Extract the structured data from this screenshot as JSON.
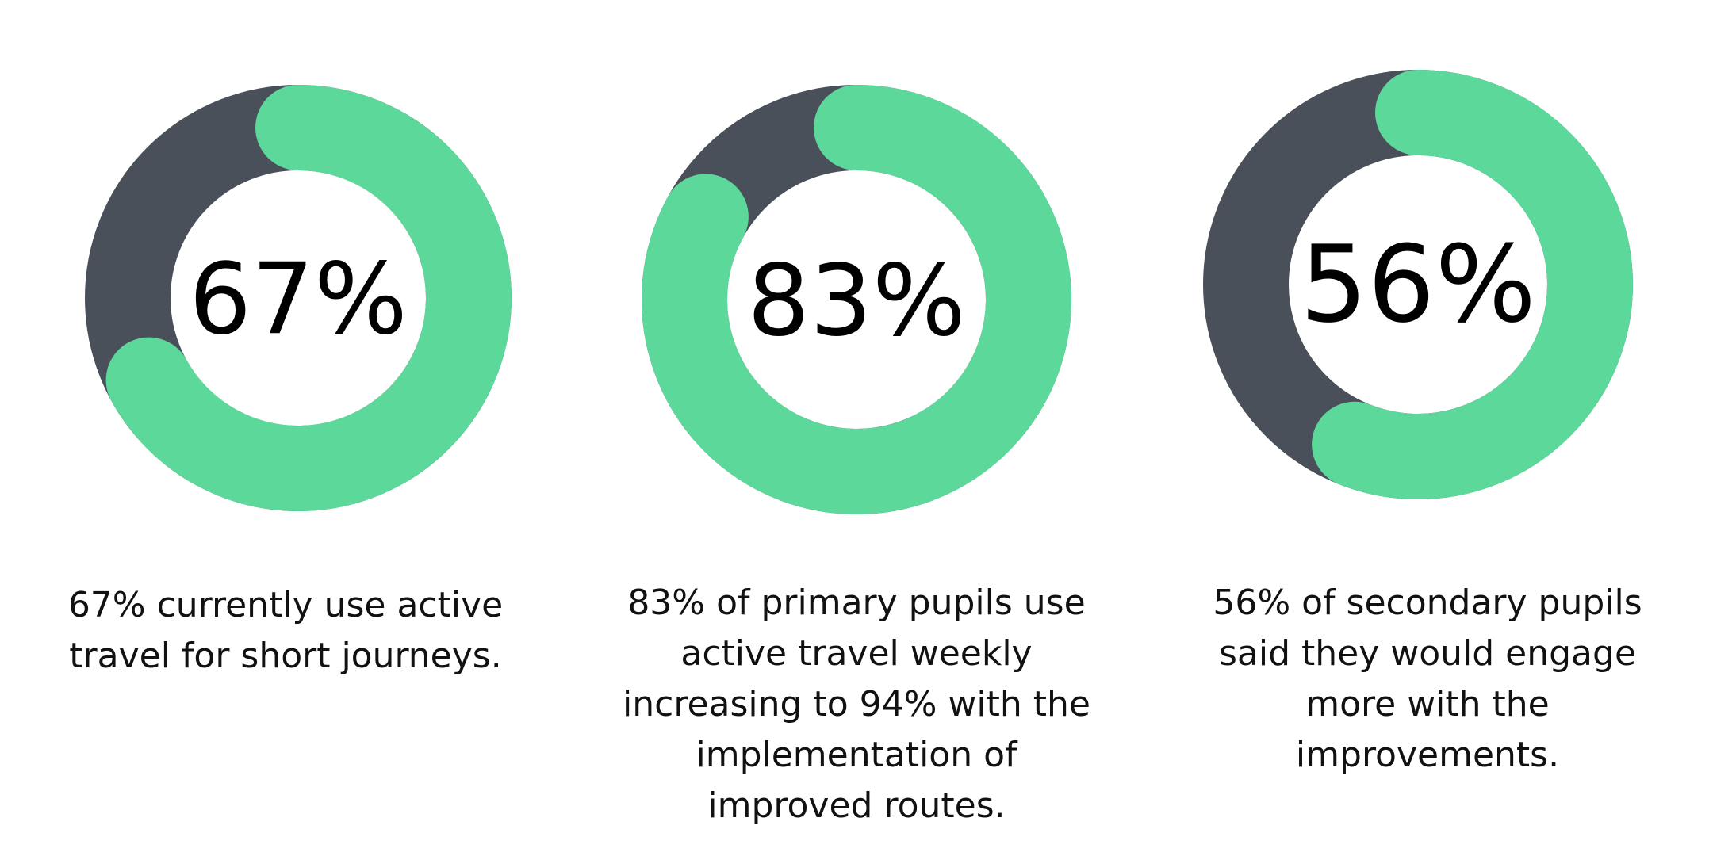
{
  "colors": {
    "remainder": "#4a5059",
    "highlight": "#5cd89b",
    "background": "#ffffff",
    "text": "#000000"
  },
  "chart_data": [
    {
      "type": "donut",
      "value": 67,
      "max": 100,
      "center_label": "67%",
      "caption": "67% currently use active travel for short journeys."
    },
    {
      "type": "donut",
      "value": 83,
      "max": 100,
      "center_label": "83%",
      "caption": "83% of primary pupils use active travel weekly increasing to 94% with the implementation of improved routes."
    },
    {
      "type": "donut",
      "value": 56,
      "max": 100,
      "center_label": "56%",
      "caption": "56% of secondary pupils said they would engage more with the improvements."
    }
  ]
}
